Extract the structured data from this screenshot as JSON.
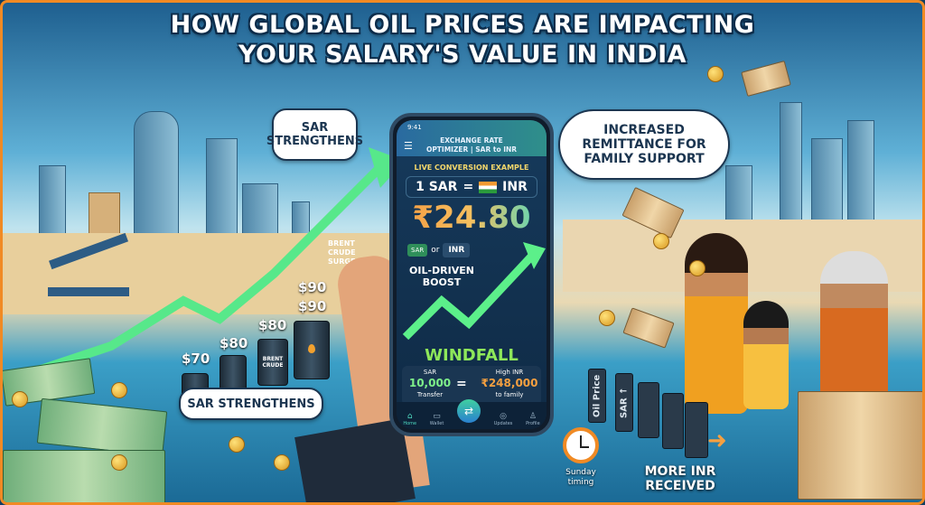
{
  "title": {
    "line1": "HOW GLOBAL OIL PRICES ARE IMPACTING",
    "line2": "YOUR SALARY'S VALUE IN INDIA"
  },
  "bubbles": {
    "top_left": "SAR STRENGTHENS",
    "right": "INCREASED REMITTANCE FOR FAMILY SUPPORT",
    "bottom_left": "SAR STRENGTHENS"
  },
  "oil_chart": {
    "labels": [
      "$70",
      "$80",
      "$80",
      "$90",
      "$90"
    ],
    "barrel_label": "BRENT CRUDE",
    "surge_label": "BRENT CRUDE SURGE"
  },
  "phone": {
    "time": "9:41",
    "header": "EXCHANGE RATE OPTIMIZER | SAR to INR",
    "section": "LIVE CONVERSION EXAMPLE",
    "rate_left": "1 SAR",
    "rate_eq": "=",
    "rate_right": "INR",
    "rate_value": "₹24.80",
    "toggle_sar": "SAR",
    "toggle_or": "or",
    "toggle_inr": "INR",
    "boost": "OIL-DRIVEN BOOST",
    "windfall": "WINDFALL",
    "transfer": {
      "top_left": "SAR",
      "amount_left": "10,000",
      "bottom_left": "Transfer",
      "eq": "=",
      "top_right": "High INR",
      "amount_right": "₹248,000",
      "bottom_right": "to family"
    },
    "nav": [
      {
        "label": "Home",
        "icon": "home-icon"
      },
      {
        "label": "Wallet",
        "icon": "wallet-icon"
      },
      {
        "label": "",
        "icon": "swap-icon"
      },
      {
        "label": "Updates",
        "icon": "updates-icon"
      },
      {
        "label": "Profile",
        "icon": "profile-icon"
      }
    ]
  },
  "dominoes": [
    "Oil Price",
    "SAR ↑"
  ],
  "clock_label": "Sunday timing",
  "more_inr": "MORE INR RECEIVED",
  "colors": {
    "border": "#f08a24",
    "green": "#4ee07a",
    "orange": "#f5a040",
    "navy": "#0f2a45"
  }
}
